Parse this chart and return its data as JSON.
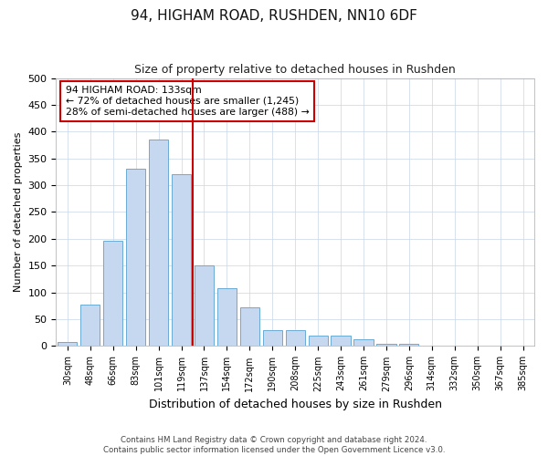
{
  "title_line1": "94, HIGHAM ROAD, RUSHDEN, NN10 6DF",
  "title_line2": "Size of property relative to detached houses in Rushden",
  "xlabel": "Distribution of detached houses by size in Rushden",
  "ylabel": "Number of detached properties",
  "bar_values": [
    8,
    78,
    197,
    330,
    385,
    320,
    150,
    108,
    73,
    30,
    30,
    20,
    20,
    12,
    5,
    4,
    1,
    0,
    0,
    0,
    0
  ],
  "bar_labels": [
    "30sqm",
    "48sqm",
    "66sqm",
    "83sqm",
    "101sqm",
    "119sqm",
    "137sqm",
    "154sqm",
    "172sqm",
    "190sqm",
    "208sqm",
    "225sqm",
    "243sqm",
    "261sqm",
    "279sqm",
    "296sqm",
    "314sqm",
    "332sqm",
    "350sqm",
    "367sqm",
    "385sqm"
  ],
  "bar_color": "#c5d8f0",
  "bar_edge_color": "#6aaad4",
  "vline_color": "#cc0000",
  "annotation_text": "94 HIGHAM ROAD: 133sqm\n← 72% of detached houses are smaller (1,245)\n28% of semi-detached houses are larger (488) →",
  "annotation_box_color": "#cc0000",
  "ylim": [
    0,
    500
  ],
  "yticks": [
    0,
    50,
    100,
    150,
    200,
    250,
    300,
    350,
    400,
    450,
    500
  ],
  "footer_line1": "Contains HM Land Registry data © Crown copyright and database right 2024.",
  "footer_line2": "Contains public sector information licensed under the Open Government Licence v3.0.",
  "bg_color": "#ffffff",
  "grid_color": "#c8d4e8"
}
